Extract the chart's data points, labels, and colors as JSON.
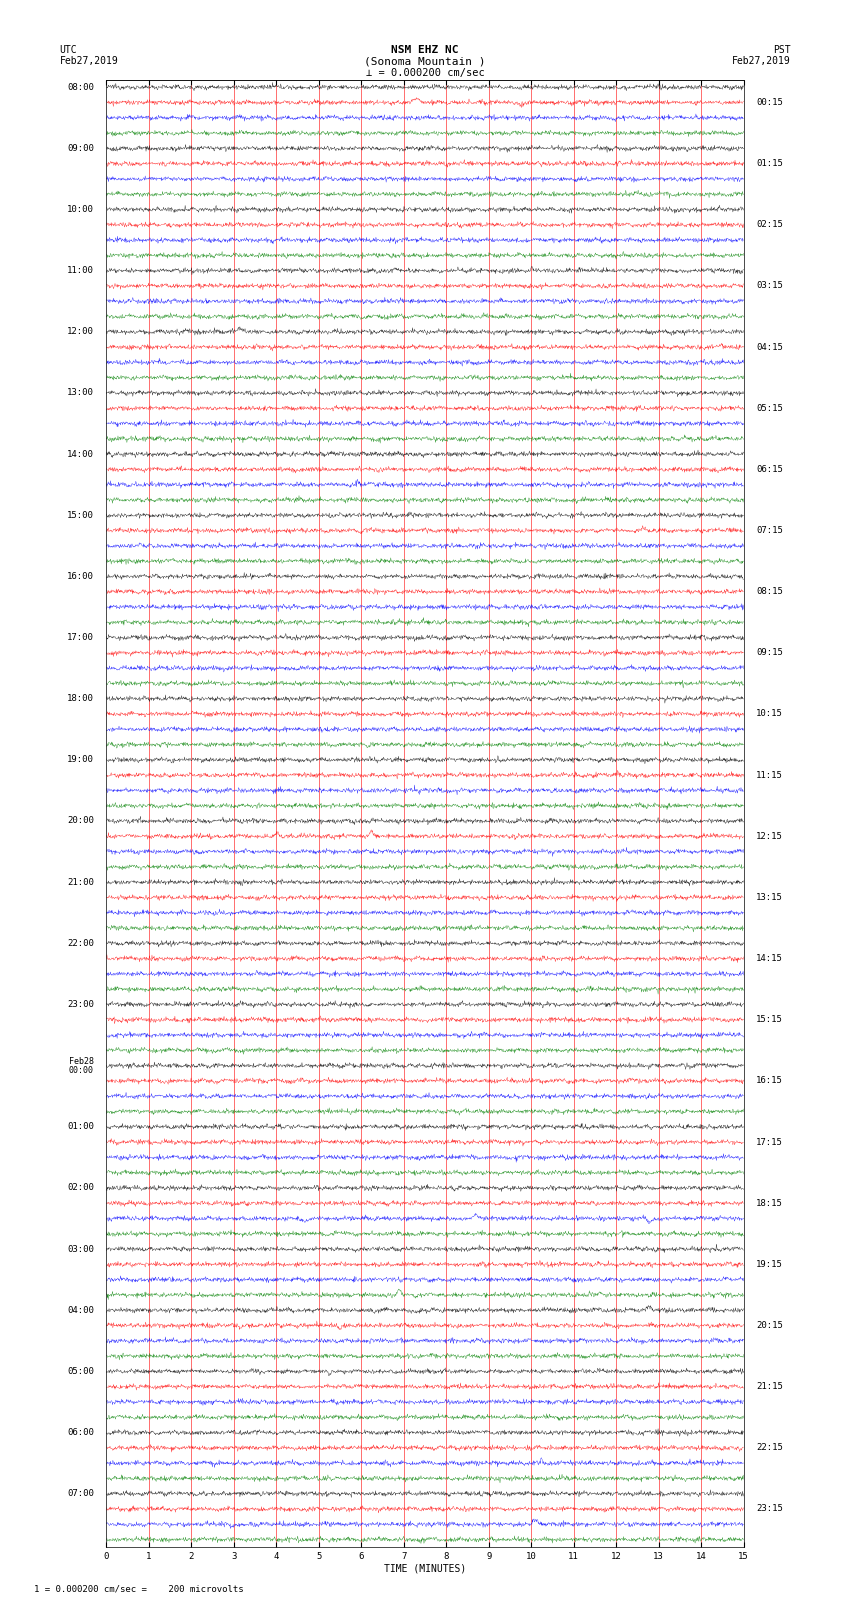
{
  "title_line1": "NSM EHZ NC",
  "title_line2": "(Sonoma Mountain )",
  "title_line3": "⊥ = 0.000200 cm/sec",
  "top_left_line1": "UTC",
  "top_left_line2": "Feb27,2019",
  "top_right_line1": "PST",
  "top_right_line2": "Feb27,2019",
  "bottom_label": "TIME (MINUTES)",
  "bottom_note": "1 = 0.000200 cm/sec =    200 microvolts",
  "left_times": [
    "08:00",
    "09:00",
    "10:00",
    "11:00",
    "12:00",
    "13:00",
    "14:00",
    "15:00",
    "16:00",
    "17:00",
    "18:00",
    "19:00",
    "20:00",
    "21:00",
    "22:00",
    "23:00",
    "Feb28\n00:00",
    "01:00",
    "02:00",
    "03:00",
    "04:00",
    "05:00",
    "06:00",
    "07:00"
  ],
  "right_times": [
    "00:15",
    "01:15",
    "02:15",
    "03:15",
    "04:15",
    "05:15",
    "06:15",
    "07:15",
    "08:15",
    "09:15",
    "10:15",
    "11:15",
    "12:15",
    "13:15",
    "14:15",
    "15:15",
    "16:15",
    "17:15",
    "18:15",
    "19:15",
    "20:15",
    "21:15",
    "22:15",
    "23:15"
  ],
  "trace_colors": [
    "black",
    "red",
    "blue",
    "green"
  ],
  "num_hours": 24,
  "traces_per_hour": 4,
  "x_ticks": [
    0,
    1,
    2,
    3,
    4,
    5,
    6,
    7,
    8,
    9,
    10,
    11,
    12,
    13,
    14,
    15
  ],
  "background_color": "white",
  "grid_color": "red",
  "title_fontsize": 8,
  "label_fontsize": 7,
  "tick_fontsize": 6.5
}
